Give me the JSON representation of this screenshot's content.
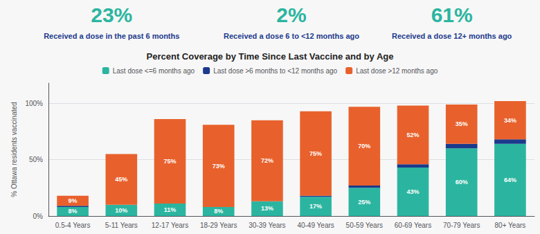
{
  "chart_data": {
    "type": "bar",
    "title": "Percent Coverage by Time Since Last Vaccine and by Age",
    "y_label": "% Ottawa residents vaccinated",
    "categories": [
      "0.5-4 Years",
      "5-11 Years",
      "12-17 Years",
      "18-29 Years",
      "30-39 Years",
      "40-49 Years",
      "50-59 Years",
      "60-69 Years",
      "70-79 Years",
      "80+ Years"
    ],
    "stacked": true,
    "series": [
      {
        "name": "Last dose <=6 months ago",
        "color": "#2BB5A0",
        "values": [
          8,
          10,
          11,
          8,
          13,
          17,
          25,
          43,
          60,
          64
        ],
        "data_labels": true,
        "value_labels": [
          "8%",
          "10%",
          "11%",
          "8%",
          "13%",
          "17%",
          "25%",
          "43%",
          "60%",
          "64%"
        ]
      },
      {
        "name": "Last dose >6 months to <12 months ago",
        "color": "#1B3A8C",
        "values": [
          1,
          0,
          0,
          0,
          0,
          1,
          2,
          3,
          4,
          4
        ]
      },
      {
        "name": "Last dose >12 months ago",
        "color": "#E8612C",
        "values": [
          9,
          45,
          75,
          73,
          72,
          75,
          70,
          52,
          35,
          34
        ],
        "data_labels": true,
        "value_labels": [
          "9%",
          "45%",
          "75%",
          "73%",
          "72%",
          "75%",
          "70%",
          "52%",
          "35%",
          "34%"
        ]
      }
    ],
    "annotations": [
      {
        "text": "23%",
        "label": "Received a dose in the past 6 months"
      },
      {
        "text": "2%",
        "label": "Received a dose 6 to <12 months ago"
      },
      {
        "text": "61%",
        "label": "Received a dose 12+ months ago"
      }
    ],
    "ylim": [
      0,
      118
    ],
    "yticks": [
      {
        "value": 0,
        "label": "0%"
      },
      {
        "value": 50,
        "label": "50%"
      },
      {
        "value": 100,
        "label": "100%"
      }
    ],
    "grid": true,
    "legend": "top"
  }
}
